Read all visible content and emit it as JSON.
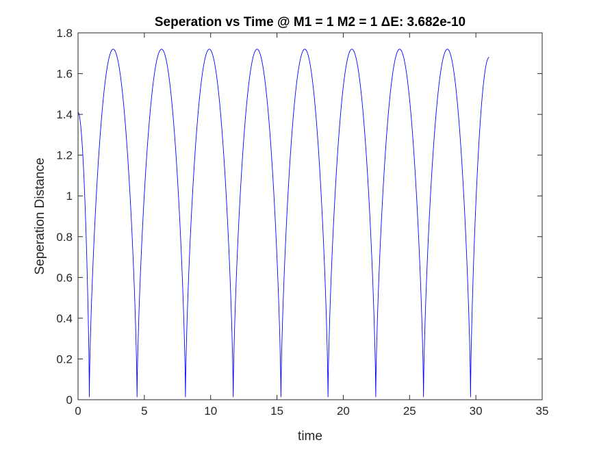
{
  "chart_data": {
    "type": "line",
    "title": "Seperation vs Time @ M1 = 1 M2 = 1 ΔE: 3.682e-10",
    "xlabel": "time",
    "ylabel": "Seperation Distance",
    "xlim": [
      0,
      35
    ],
    "ylim": [
      0,
      1.8
    ],
    "xticks": [
      0,
      5,
      10,
      15,
      20,
      25,
      30,
      35
    ],
    "yticks": [
      0,
      0.2,
      0.4,
      0.6,
      0.8,
      1,
      1.2,
      1.4,
      1.6,
      1.8
    ],
    "xtick_labels": [
      "0",
      "5",
      "10",
      "15",
      "20",
      "25",
      "30",
      "35"
    ],
    "ytick_labels": [
      "0",
      "0.2",
      "0.4",
      "0.6",
      "0.8",
      "1",
      "1.2",
      "1.4",
      "1.6",
      "1.8"
    ],
    "grid": false,
    "line_color": "#0000ff",
    "axis_color": "#262626",
    "series": [
      {
        "x": [
          0.0,
          0.85,
          2.65,
          4.45,
          6.3,
          8.1,
          9.9,
          11.7,
          13.5,
          15.3,
          17.1,
          18.85,
          20.65,
          22.45,
          24.25,
          26.05,
          27.85,
          29.6,
          31.0
        ],
        "y": [
          1.41,
          0.01,
          1.72,
          0.01,
          1.72,
          0.01,
          1.72,
          0.01,
          1.72,
          0.01,
          1.72,
          0.01,
          1.72,
          0.01,
          1.72,
          0.01,
          1.72,
          0.01,
          1.68
        ]
      }
    ]
  }
}
